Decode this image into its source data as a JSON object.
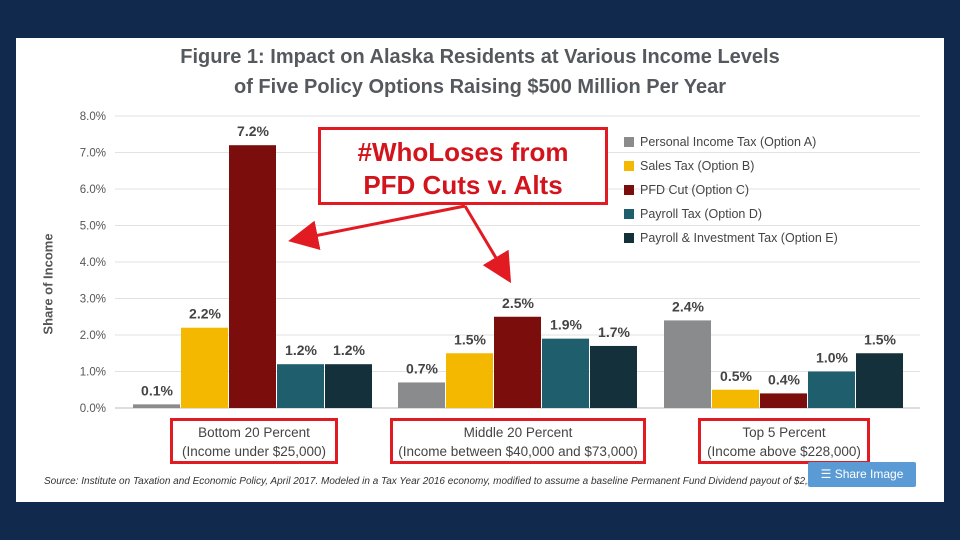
{
  "title_line1": "Figure 1: Impact on Alaska Residents at Various Income Levels",
  "title_line2": "of Five Policy Options Raising $500 Million Per Year",
  "callout": {
    "line1": "#WhoLoses from",
    "line2": "PFD Cuts v. Alts"
  },
  "source": "Source: Institute on Taxation and Economic Policy, April 2017.  Modeled in a Tax Year 2016 economy, modified to assume a baseline Permanent Fund Dividend payout of $2,20",
  "share_button": "Share Image",
  "chart_data": {
    "type": "bar",
    "ylabel": "Share of Income",
    "ylim": [
      0,
      8
    ],
    "yticks": [
      "0.0%",
      "1.0%",
      "2.0%",
      "3.0%",
      "4.0%",
      "5.0%",
      "6.0%",
      "7.0%",
      "8.0%"
    ],
    "categories": [
      {
        "line1": "Bottom 20 Percent",
        "line2": "(Income under $25,000)"
      },
      {
        "line1": "Middle 20 Percent",
        "line2": "(Income between $40,000 and $73,000)"
      },
      {
        "line1": "Top 5 Percent",
        "line2": "(Income above $228,000)"
      }
    ],
    "series": [
      {
        "name": "Personal Income Tax (Option A)",
        "color": "#8a8b8c",
        "values": [
          0.1,
          0.7,
          2.4
        ],
        "labels": [
          "0.1%",
          "0.7%",
          "2.4%"
        ]
      },
      {
        "name": "Sales Tax (Option B)",
        "color": "#f5b800",
        "values": [
          2.2,
          1.5,
          0.5
        ],
        "labels": [
          "2.2%",
          "1.5%",
          "0.5%"
        ]
      },
      {
        "name": "PFD Cut (Option C)",
        "color": "#7b0d0d",
        "values": [
          7.2,
          2.5,
          0.4
        ],
        "labels": [
          "7.2%",
          "2.5%",
          "0.4%"
        ]
      },
      {
        "name": "Payroll Tax (Option D)",
        "color": "#1f5f6d",
        "values": [
          1.2,
          1.9,
          1.0
        ],
        "labels": [
          "1.2%",
          "1.9%",
          "1.0%"
        ]
      },
      {
        "name": "Payroll & Investment Tax (Option E)",
        "color": "#14303a",
        "values": [
          1.2,
          1.7,
          1.5
        ],
        "labels": [
          "1.2%",
          "1.7%",
          "1.5%"
        ]
      }
    ],
    "grid": true,
    "legend_position": "top-right"
  }
}
